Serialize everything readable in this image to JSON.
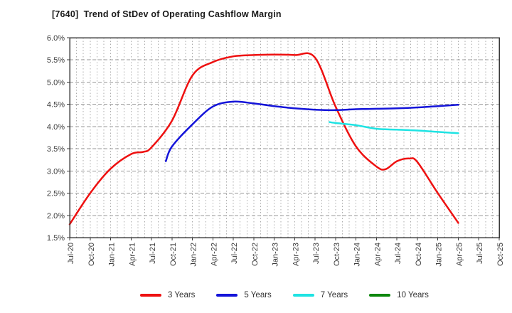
{
  "window": {
    "background": "#ffffff"
  },
  "chart_data": {
    "type": "line",
    "title": "[7640]  Trend of StDev of Operating Cashflow Margin",
    "x_labels": [
      "Jul-20",
      "Oct-20",
      "Jan-21",
      "Apr-21",
      "Jul-21",
      "Oct-21",
      "Jan-22",
      "Apr-22",
      "Jul-22",
      "Oct-22",
      "Jan-23",
      "Apr-23",
      "Jul-23",
      "Oct-23",
      "Jan-24",
      "Apr-24",
      "Jul-24",
      "Oct-24",
      "Jan-25",
      "Apr-25",
      "Jul-25",
      "Oct-25"
    ],
    "ylim": [
      1.5,
      6.0
    ],
    "ytick_values": [
      1.5,
      2.0,
      2.5,
      3.0,
      3.5,
      4.0,
      4.5,
      5.0,
      5.5,
      6.0
    ],
    "ytick_labels": [
      "1.5%",
      "2.0%",
      "2.5%",
      "3.0%",
      "3.5%",
      "4.0%",
      "4.5%",
      "5.0%",
      "5.5%",
      "6.0%"
    ],
    "grid": {
      "horizontal": "dashed",
      "vertical": "dotted",
      "vertical_frequency": "monthly"
    },
    "legend_position": "bottom",
    "axis_color": "#3a3a3a",
    "grid_h_color": "#9a9a9a",
    "grid_v_color": "#ababab",
    "tick_label_color": "#3b3b3b",
    "series": [
      {
        "name": "3 Years",
        "color": "#ee1111",
        "points": [
          [
            0,
            1.8
          ],
          [
            1,
            2.5
          ],
          [
            2,
            3.05
          ],
          [
            3,
            3.38
          ],
          [
            3.6,
            3.43
          ],
          [
            4,
            3.53
          ],
          [
            5,
            4.13
          ],
          [
            6,
            5.15
          ],
          [
            7,
            5.45
          ],
          [
            8,
            5.58
          ],
          [
            9,
            5.61
          ],
          [
            10,
            5.62
          ],
          [
            11,
            5.61
          ],
          [
            12,
            5.55
          ],
          [
            13,
            4.45
          ],
          [
            14,
            3.55
          ],
          [
            15,
            3.1
          ],
          [
            15.45,
            3.04
          ],
          [
            16,
            3.22
          ],
          [
            16.6,
            3.28
          ],
          [
            17,
            3.2
          ],
          [
            18,
            2.5
          ],
          [
            19,
            1.83
          ]
        ]
      },
      {
        "name": "5 Years",
        "color": "#1414d9",
        "points": [
          [
            4.7,
            3.22
          ],
          [
            5,
            3.55
          ],
          [
            6,
            4.05
          ],
          [
            7,
            4.45
          ],
          [
            8,
            4.56
          ],
          [
            9,
            4.52
          ],
          [
            10,
            4.46
          ],
          [
            11,
            4.41
          ],
          [
            12,
            4.38
          ],
          [
            13,
            4.37
          ],
          [
            14,
            4.39
          ],
          [
            15,
            4.4
          ],
          [
            16,
            4.41
          ],
          [
            17,
            4.43
          ],
          [
            18,
            4.46
          ],
          [
            19,
            4.49
          ]
        ]
      },
      {
        "name": "7 Years",
        "color": "#1fe3e3",
        "points": [
          [
            12.7,
            4.1
          ],
          [
            13,
            4.08
          ],
          [
            14,
            4.03
          ],
          [
            15,
            3.95
          ],
          [
            16,
            3.93
          ],
          [
            17,
            3.91
          ],
          [
            18,
            3.88
          ],
          [
            19,
            3.85
          ]
        ]
      },
      {
        "name": "10 Years",
        "color": "#0c870c",
        "points": []
      }
    ]
  }
}
